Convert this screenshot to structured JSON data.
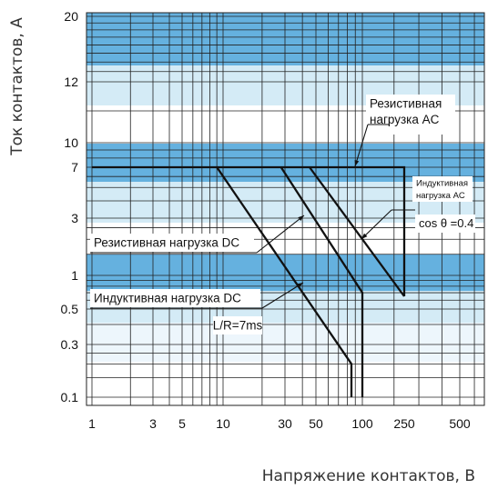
{
  "chart_data": {
    "type": "line",
    "ylabel": "Ток контактов, А",
    "xlabel": "Напряжение контактов, В",
    "x_scale": "log",
    "y_scale": "uneven",
    "x_ticks": [
      1,
      3,
      5,
      10,
      30,
      50,
      100,
      250,
      500
    ],
    "x_tick_labels": [
      "1",
      "3",
      "5",
      "10",
      "30",
      "50",
      "100",
      "250",
      "500"
    ],
    "y_ticks": [
      0.1,
      0.3,
      0.5,
      1,
      3,
      7,
      10,
      12,
      20
    ],
    "y_tick_labels": [
      "0.1",
      "0.3",
      "0.5",
      "1",
      "3",
      "7",
      "10",
      "12",
      "20"
    ],
    "grid": true,
    "series": [
      {
        "name": "Резистивная нагрузка AC",
        "x": [
          1,
          250,
          250
        ],
        "y": [
          7,
          7,
          0.65
        ]
      },
      {
        "name": "Индуктивная нагрузка AC",
        "x": [
          45,
          250
        ],
        "y": [
          7,
          0.65
        ]
      },
      {
        "name": "Резистивная нагрузка DC",
        "x": [
          28,
          100,
          100
        ],
        "y": [
          7,
          0.7,
          0.1
        ]
      },
      {
        "name": "Индуктивная нагрузка DC",
        "x": [
          9,
          85,
          85
        ],
        "y": [
          7,
          0.2,
          0.1
        ]
      }
    ],
    "annotations": [
      {
        "text_lines": [
          "Резистивная",
          "нагрузка AC"
        ]
      },
      {
        "text_lines": [
          "Индуктивная",
          "нагрузка AC"
        ]
      },
      {
        "text_lines": [
          "cos θ =0.4"
        ]
      },
      {
        "text_lines": [
          "Резистивная нагрузка DC"
        ]
      },
      {
        "text_lines": [
          "Индуктивная нагрузка DC"
        ]
      },
      {
        "text_lines": [
          "L/R=7ms"
        ]
      }
    ],
    "colors": {
      "band_dark": "#4aa3d9",
      "band_light": "#cde8f5",
      "line": "#111111",
      "grid": "#222222"
    }
  }
}
